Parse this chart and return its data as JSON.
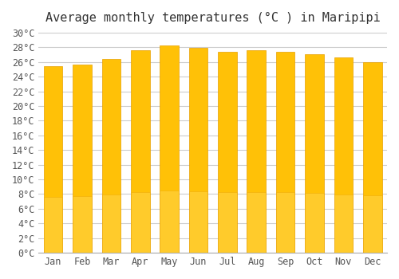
{
  "title": "Average monthly temperatures (°C ) in Maripipi",
  "months": [
    "Jan",
    "Feb",
    "Mar",
    "Apr",
    "May",
    "Jun",
    "Jul",
    "Aug",
    "Sep",
    "Oct",
    "Nov",
    "Dec"
  ],
  "values": [
    25.4,
    25.6,
    26.4,
    27.6,
    28.3,
    27.9,
    27.4,
    27.6,
    27.4,
    27.1,
    26.6,
    26.0
  ],
  "bar_color_top": "#FFC107",
  "bar_color_bottom": "#FFD54F",
  "ylim": [
    0,
    30
  ],
  "ytick_step": 2,
  "background_color": "#FFFFFF",
  "grid_color": "#CCCCCC",
  "title_fontsize": 11,
  "tick_fontsize": 8.5,
  "font_family": "monospace"
}
